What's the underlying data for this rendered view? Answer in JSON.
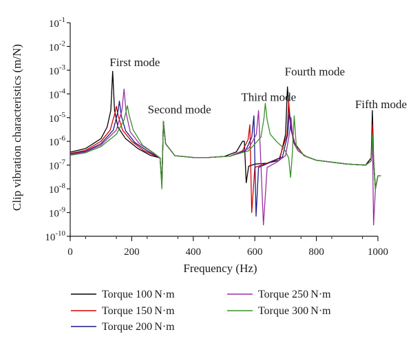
{
  "chart_data": {
    "type": "line",
    "xlabel": "Frequency (Hz)",
    "ylabel": "Clip vibration characteristics (m/N)",
    "xlim": [
      0,
      1000
    ],
    "ylim": [
      1e-10,
      0.1
    ],
    "y_scale": "log",
    "x_ticks": [
      "0",
      "200",
      "400",
      "600",
      "800",
      "1000"
    ],
    "x_tick_values": [
      0,
      200,
      400,
      600,
      800,
      1000
    ],
    "y_ticks": [
      {
        "base": "10",
        "exp": "-1",
        "value": 0.1
      },
      {
        "base": "10",
        "exp": "-2",
        "value": 0.01
      },
      {
        "base": "10",
        "exp": "-3",
        "value": 0.001
      },
      {
        "base": "10",
        "exp": "-4",
        "value": 0.0001
      },
      {
        "base": "10",
        "exp": "-5",
        "value": 1e-05
      },
      {
        "base": "10",
        "exp": "-6",
        "value": 1e-06
      },
      {
        "base": "10",
        "exp": "-7",
        "value": 1e-07
      },
      {
        "base": "10",
        "exp": "-8",
        "value": 1e-08
      },
      {
        "base": "10",
        "exp": "-9",
        "value": 1e-09
      },
      {
        "base": "10",
        "exp": "-10",
        "value": 1e-10
      }
    ],
    "grid": false,
    "legend_position": "bottom",
    "annotations": [
      {
        "text": "First mode",
        "x": 210,
        "y": 0.0015
      },
      {
        "text": "Second mode",
        "x": 355,
        "y": 1.5e-05
      },
      {
        "text": "Third mode",
        "x": 645,
        "y": 5e-05
      },
      {
        "text": "Fourth mode",
        "x": 795,
        "y": 0.0006
      },
      {
        "text": "Fifth mode",
        "x": 1010,
        "y": 2.5e-05
      }
    ],
    "series": [
      {
        "name": "Torque 100 N·m",
        "color": "#000000",
        "points": [
          [
            0,
            3.5e-07
          ],
          [
            50,
            5e-07
          ],
          [
            100,
            1.3e-06
          ],
          [
            120,
            4e-06
          ],
          [
            132,
            2e-05
          ],
          [
            138,
            0.0009
          ],
          [
            144,
            2e-05
          ],
          [
            155,
            4e-06
          ],
          [
            180,
            1.3e-06
          ],
          [
            220,
            5e-07
          ],
          [
            260,
            2.6e-07
          ],
          [
            292,
            2e-07
          ],
          [
            298,
            2e-08
          ],
          [
            303,
            7e-06
          ],
          [
            310,
            8e-07
          ],
          [
            340,
            2.5e-07
          ],
          [
            400,
            2.1e-07
          ],
          [
            450,
            2.1e-07
          ],
          [
            500,
            2.3e-07
          ],
          [
            540,
            3.6e-07
          ],
          [
            560,
            1e-06
          ],
          [
            566,
            1e-06
          ],
          [
            572,
            1.8e-08
          ],
          [
            580,
            9e-08
          ],
          [
            600,
            1.1e-07
          ],
          [
            640,
            1.2e-07
          ],
          [
            680,
            1.6e-07
          ],
          [
            700,
            2e-06
          ],
          [
            706,
            0.0002
          ],
          [
            712,
            1.6e-05
          ],
          [
            725,
            1e-06
          ],
          [
            760,
            2.5e-07
          ],
          [
            800,
            1.6e-07
          ],
          [
            900,
            1.1e-07
          ],
          [
            960,
            1e-07
          ],
          [
            978,
            2e-07
          ],
          [
            982,
            2e-05
          ],
          [
            986,
            2e-07
          ],
          [
            992,
            1e-08
          ],
          [
            1000,
            3.5e-08
          ],
          [
            1010,
            3.5e-08
          ]
        ]
      },
      {
        "name": "Torque 150 N·m",
        "color": "#d40000",
        "points": [
          [
            0,
            3.1e-07
          ],
          [
            50,
            4.2e-07
          ],
          [
            100,
            1e-06
          ],
          [
            130,
            3e-06
          ],
          [
            145,
            1.5e-05
          ],
          [
            150,
            3e-05
          ],
          [
            156,
            1.2e-05
          ],
          [
            170,
            3e-06
          ],
          [
            200,
            1e-06
          ],
          [
            240,
            4e-07
          ],
          [
            292,
            2e-07
          ],
          [
            298,
            1.5e-08
          ],
          [
            303,
            7e-06
          ],
          [
            310,
            8e-07
          ],
          [
            340,
            2.5e-07
          ],
          [
            400,
            2.1e-07
          ],
          [
            450,
            2.1e-07
          ],
          [
            520,
            2.4e-07
          ],
          [
            560,
            4e-07
          ],
          [
            578,
            1.2e-06
          ],
          [
            584,
            5e-06
          ],
          [
            590,
            1e-09
          ],
          [
            600,
            8e-08
          ],
          [
            640,
            1.2e-07
          ],
          [
            680,
            2e-07
          ],
          [
            705,
            2e-06
          ],
          [
            710,
            5e-05
          ],
          [
            716,
            5e-06
          ],
          [
            730,
            8e-07
          ],
          [
            760,
            2.5e-07
          ],
          [
            800,
            1.6e-07
          ],
          [
            900,
            1.1e-07
          ],
          [
            960,
            1e-07
          ],
          [
            978,
            1.5e-07
          ],
          [
            982,
            5e-06
          ],
          [
            986,
            1.5e-07
          ],
          [
            992,
            1e-08
          ],
          [
            1000,
            3.5e-08
          ],
          [
            1010,
            3.5e-08
          ]
        ]
      },
      {
        "name": "Torque 200 N·m",
        "color": "#1a1a8c",
        "points": [
          [
            0,
            2.9e-07
          ],
          [
            50,
            3.8e-07
          ],
          [
            100,
            8e-07
          ],
          [
            140,
            3e-06
          ],
          [
            155,
            1.8e-05
          ],
          [
            160,
            5e-05
          ],
          [
            166,
            1.2e-05
          ],
          [
            180,
            2.8e-06
          ],
          [
            210,
            9e-07
          ],
          [
            250,
            4e-07
          ],
          [
            292,
            2e-07
          ],
          [
            298,
            1.5e-08
          ],
          [
            303,
            7e-06
          ],
          [
            310,
            8e-07
          ],
          [
            340,
            2.5e-07
          ],
          [
            400,
            2.1e-07
          ],
          [
            450,
            2.1e-07
          ],
          [
            520,
            2.4e-07
          ],
          [
            570,
            4e-07
          ],
          [
            590,
            1.5e-06
          ],
          [
            597,
            1.2e-05
          ],
          [
            604,
            7e-10
          ],
          [
            612,
            8e-08
          ],
          [
            650,
            1.3e-07
          ],
          [
            690,
            2.2e-07
          ],
          [
            707,
            2e-06
          ],
          [
            712,
            1.8e-05
          ],
          [
            718,
            3e-06
          ],
          [
            730,
            7e-07
          ],
          [
            760,
            2.5e-07
          ],
          [
            800,
            1.6e-07
          ],
          [
            900,
            1.1e-07
          ],
          [
            960,
            1e-07
          ],
          [
            978,
            1.5e-07
          ],
          [
            982,
            2e-06
          ],
          [
            986,
            1.5e-07
          ],
          [
            992,
            1e-08
          ],
          [
            1000,
            3.5e-08
          ],
          [
            1010,
            3.5e-08
          ]
        ]
      },
      {
        "name": "Torque 250 N·m",
        "color": "#9b2fa0",
        "points": [
          [
            0,
            2.8e-07
          ],
          [
            50,
            3.6e-07
          ],
          [
            100,
            7e-07
          ],
          [
            150,
            3e-06
          ],
          [
            168,
            2e-05
          ],
          [
            175,
            0.00016
          ],
          [
            182,
            1.5e-05
          ],
          [
            195,
            2.5e-06
          ],
          [
            225,
            8e-07
          ],
          [
            265,
            3.5e-07
          ],
          [
            292,
            2e-07
          ],
          [
            298,
            1.5e-08
          ],
          [
            303,
            7e-06
          ],
          [
            310,
            8e-07
          ],
          [
            340,
            2.5e-07
          ],
          [
            400,
            2.1e-07
          ],
          [
            450,
            2.1e-07
          ],
          [
            520,
            2.4e-07
          ],
          [
            580,
            5e-07
          ],
          [
            605,
            2e-06
          ],
          [
            612,
            2e-05
          ],
          [
            619,
            2e-07
          ],
          [
            628,
            3e-10
          ],
          [
            640,
            8e-08
          ],
          [
            670,
            1.3e-07
          ],
          [
            700,
            2.5e-07
          ],
          [
            712,
            2e-06
          ],
          [
            718,
            1e-05
          ],
          [
            724,
            1e-06
          ],
          [
            740,
            4e-07
          ],
          [
            770,
            2.2e-07
          ],
          [
            800,
            1.6e-07
          ],
          [
            900,
            1.1e-07
          ],
          [
            960,
            1e-07
          ],
          [
            978,
            1.5e-07
          ],
          [
            982,
            2e-06
          ],
          [
            986,
            3e-10
          ],
          [
            992,
            1e-08
          ],
          [
            1000,
            3.5e-08
          ],
          [
            1010,
            3.5e-08
          ]
        ]
      },
      {
        "name": "Torque 300 N·m",
        "color": "#3a8f28",
        "points": [
          [
            0,
            2.6e-07
          ],
          [
            50,
            3.3e-07
          ],
          [
            100,
            6e-07
          ],
          [
            150,
            2e-06
          ],
          [
            175,
            8e-06
          ],
          [
            186,
            3.2e-05
          ],
          [
            192,
            1.2e-05
          ],
          [
            205,
            3e-06
          ],
          [
            235,
            7e-07
          ],
          [
            275,
            3e-07
          ],
          [
            292,
            2e-07
          ],
          [
            298,
            1e-08
          ],
          [
            303,
            7e-06
          ],
          [
            310,
            8e-07
          ],
          [
            340,
            2.5e-07
          ],
          [
            400,
            2.1e-07
          ],
          [
            450,
            2.1e-07
          ],
          [
            520,
            2.4e-07
          ],
          [
            580,
            4e-07
          ],
          [
            620,
            1.5e-06
          ],
          [
            630,
            1e-05
          ],
          [
            634,
            4e-05
          ],
          [
            640,
            8e-06
          ],
          [
            650,
            2e-06
          ],
          [
            670,
            1e-06
          ],
          [
            695,
            5e-07
          ],
          [
            710,
            2e-07
          ],
          [
            716,
            3e-08
          ],
          [
            722,
            3e-07
          ],
          [
            728,
            1.2e-05
          ],
          [
            735,
            6e-07
          ],
          [
            760,
            2.5e-07
          ],
          [
            800,
            1.6e-07
          ],
          [
            900,
            1.1e-07
          ],
          [
            960,
            1e-07
          ],
          [
            978,
            1.5e-07
          ],
          [
            982,
            2e-06
          ],
          [
            986,
            1.5e-07
          ],
          [
            992,
            1e-08
          ],
          [
            1000,
            3.5e-08
          ],
          [
            1010,
            3.5e-08
          ]
        ]
      }
    ]
  }
}
